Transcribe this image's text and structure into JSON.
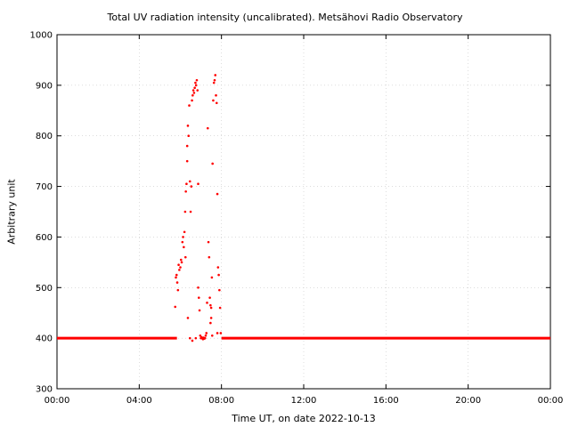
{
  "chart_data": {
    "type": "scatter",
    "title": "Total UV radiation intensity (uncalibrated). Metsähovi Radio Observatory",
    "xlabel": "Time UT, on date 2022-10-13",
    "ylabel": "Arbitrary unit",
    "xlim": [
      "00:00",
      "24:00"
    ],
    "ylim": [
      300,
      1000
    ],
    "x_ticks": [
      "00:00",
      "04:00",
      "08:00",
      "12:00",
      "16:00",
      "20:00",
      "00:00"
    ],
    "y_ticks": [
      300,
      400,
      500,
      600,
      700,
      800,
      900,
      1000
    ],
    "grid": true,
    "marker_color": "#ff0000",
    "baseline": {
      "value": 400,
      "segments": [
        [
          "00:00",
          "05:50"
        ],
        [
          "08:00",
          "24:00"
        ]
      ]
    },
    "series": [
      {
        "x": [
          "05:45",
          "05:47",
          "05:49",
          "05:51",
          "05:53",
          "05:55",
          "05:57",
          "06:00",
          "06:02",
          "06:04",
          "06:06",
          "06:08",
          "06:10",
          "06:12",
          "06:14",
          "06:16",
          "06:18",
          "06:20",
          "06:22",
          "06:24",
          "06:26",
          "06:28",
          "06:30",
          "06:32",
          "06:34",
          "06:36",
          "06:38",
          "06:40",
          "06:42",
          "06:44",
          "06:46",
          "06:48",
          "06:50",
          "06:52",
          "06:54",
          "06:56",
          "06:58",
          "07:00",
          "07:02",
          "07:04",
          "07:06",
          "07:08",
          "07:10",
          "07:12",
          "07:14",
          "07:16",
          "07:18",
          "07:20",
          "07:22",
          "07:24",
          "07:26",
          "07:28",
          "07:30",
          "07:32",
          "07:34",
          "07:36",
          "07:38",
          "07:40",
          "07:42",
          "07:44",
          "07:46",
          "07:48",
          "07:50",
          "07:52",
          "07:54",
          "07:56",
          "07:58"
        ],
        "y": [
          462,
          520,
          525,
          510,
          495,
          545,
          535,
          540,
          555,
          550,
          590,
          600,
          580,
          610,
          650,
          690,
          705,
          750,
          820,
          800,
          860,
          710,
          650,
          700,
          870,
          880,
          890,
          885,
          895,
          905,
          900,
          910,
          890,
          705,
          480,
          455,
          405,
          400,
          402,
          400,
          398,
          401,
          399,
          400,
          405,
          410,
          470,
          815,
          590,
          560,
          480,
          465,
          460,
          520,
          745,
          870,
          905,
          910,
          920,
          880,
          865,
          685,
          540,
          525,
          495,
          460,
          410
        ],
        "x_extra": [
          "06:22",
          "06:28",
          "06:35",
          "06:45",
          "06:52",
          "07:28",
          "07:30",
          "07:33",
          "07:48",
          "06:15",
          "06:20"
        ],
        "y_extra": [
          440,
          400,
          395,
          400,
          500,
          430,
          440,
          405,
          410,
          560,
          780
        ]
      }
    ]
  }
}
